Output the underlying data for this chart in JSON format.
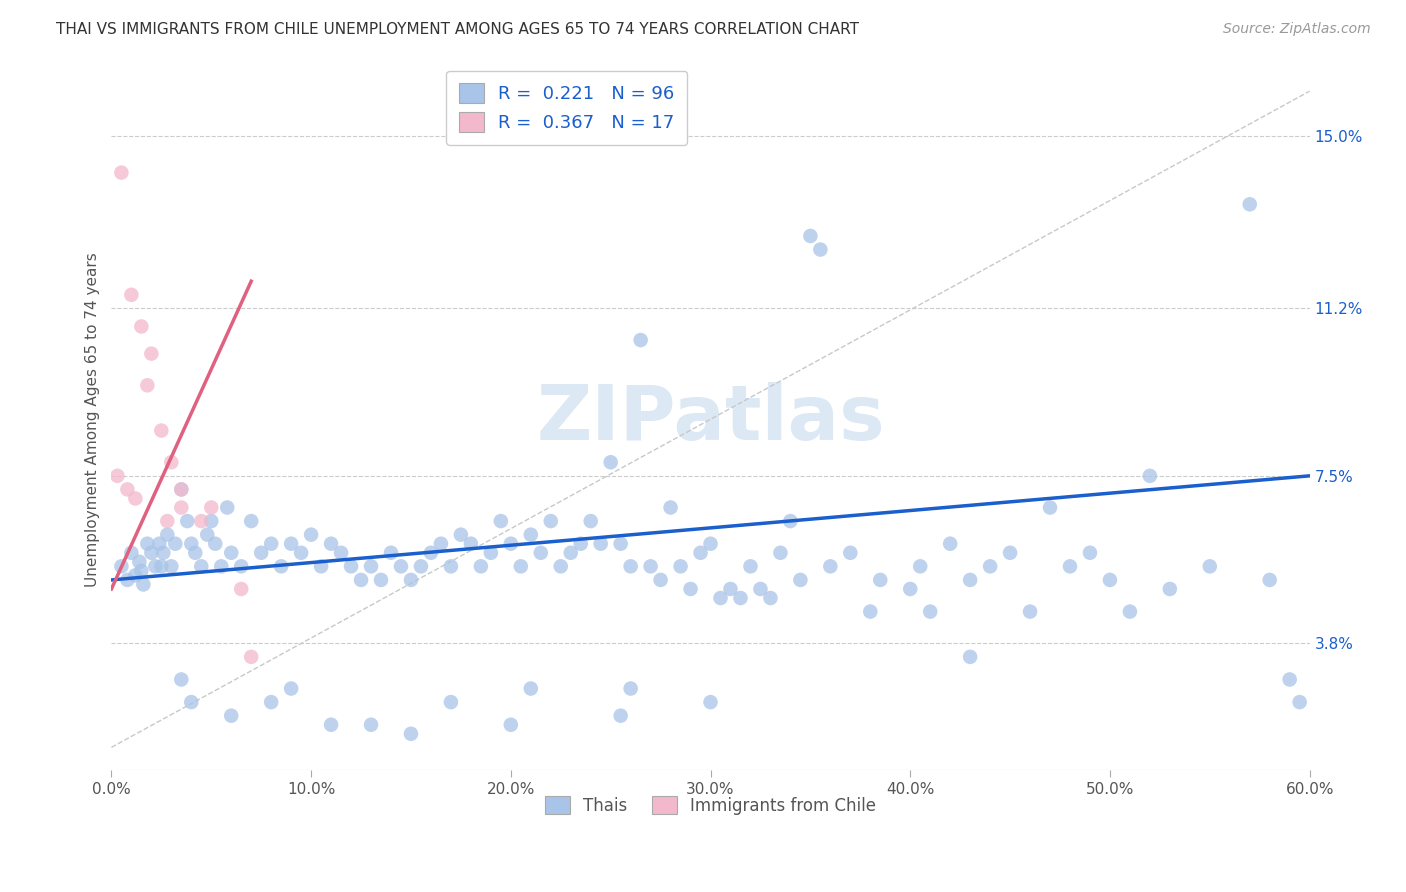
{
  "title": "THAI VS IMMIGRANTS FROM CHILE UNEMPLOYMENT AMONG AGES 65 TO 74 YEARS CORRELATION CHART",
  "source": "Source: ZipAtlas.com",
  "xlabel_vals": [
    0.0,
    10.0,
    20.0,
    30.0,
    40.0,
    50.0,
    60.0
  ],
  "ylabel": "Unemployment Among Ages 65 to 74 years",
  "ylabel_ticks_labels": [
    "3.8%",
    "7.5%",
    "11.2%",
    "15.0%"
  ],
  "ylabel_ticks_vals": [
    3.8,
    7.5,
    11.2,
    15.0
  ],
  "xlim": [
    0,
    60
  ],
  "ylim": [
    1.0,
    16.5
  ],
  "watermark": "ZIPatlas",
  "thai_scatter_color": "#a8c4e8",
  "chile_scatter_color": "#f4b8cc",
  "thai_line_color": "#1a5fcc",
  "chile_line_color": "#e06080",
  "thai_points": [
    [
      0.5,
      5.5
    ],
    [
      0.8,
      5.2
    ],
    [
      1.0,
      5.8
    ],
    [
      1.2,
      5.3
    ],
    [
      1.4,
      5.6
    ],
    [
      1.5,
      5.4
    ],
    [
      1.6,
      5.1
    ],
    [
      1.8,
      6.0
    ],
    [
      2.0,
      5.8
    ],
    [
      2.2,
      5.5
    ],
    [
      2.4,
      6.0
    ],
    [
      2.5,
      5.5
    ],
    [
      2.6,
      5.8
    ],
    [
      2.8,
      6.2
    ],
    [
      3.0,
      5.5
    ],
    [
      3.2,
      6.0
    ],
    [
      3.5,
      7.2
    ],
    [
      3.8,
      6.5
    ],
    [
      4.0,
      6.0
    ],
    [
      4.2,
      5.8
    ],
    [
      4.5,
      5.5
    ],
    [
      4.8,
      6.2
    ],
    [
      5.0,
      6.5
    ],
    [
      5.2,
      6.0
    ],
    [
      5.5,
      5.5
    ],
    [
      5.8,
      6.8
    ],
    [
      6.0,
      5.8
    ],
    [
      6.5,
      5.5
    ],
    [
      7.0,
      6.5
    ],
    [
      7.5,
      5.8
    ],
    [
      8.0,
      6.0
    ],
    [
      8.5,
      5.5
    ],
    [
      9.0,
      6.0
    ],
    [
      9.5,
      5.8
    ],
    [
      10.0,
      6.2
    ],
    [
      10.5,
      5.5
    ],
    [
      11.0,
      6.0
    ],
    [
      11.5,
      5.8
    ],
    [
      12.0,
      5.5
    ],
    [
      12.5,
      5.2
    ],
    [
      13.0,
      5.5
    ],
    [
      13.5,
      5.2
    ],
    [
      14.0,
      5.8
    ],
    [
      14.5,
      5.5
    ],
    [
      15.0,
      5.2
    ],
    [
      15.5,
      5.5
    ],
    [
      16.0,
      5.8
    ],
    [
      16.5,
      6.0
    ],
    [
      17.0,
      5.5
    ],
    [
      17.5,
      6.2
    ],
    [
      18.0,
      6.0
    ],
    [
      18.5,
      5.5
    ],
    [
      19.0,
      5.8
    ],
    [
      19.5,
      6.5
    ],
    [
      20.0,
      6.0
    ],
    [
      20.5,
      5.5
    ],
    [
      21.0,
      6.2
    ],
    [
      21.5,
      5.8
    ],
    [
      22.0,
      6.5
    ],
    [
      22.5,
      5.5
    ],
    [
      23.0,
      5.8
    ],
    [
      23.5,
      6.0
    ],
    [
      24.0,
      6.5
    ],
    [
      24.5,
      6.0
    ],
    [
      25.0,
      7.8
    ],
    [
      25.5,
      6.0
    ],
    [
      26.0,
      5.5
    ],
    [
      26.5,
      10.5
    ],
    [
      27.0,
      5.5
    ],
    [
      27.5,
      5.2
    ],
    [
      28.0,
      6.8
    ],
    [
      28.5,
      5.5
    ],
    [
      29.0,
      5.0
    ],
    [
      29.5,
      5.8
    ],
    [
      30.0,
      6.0
    ],
    [
      30.5,
      4.8
    ],
    [
      31.0,
      5.0
    ],
    [
      31.5,
      4.8
    ],
    [
      32.0,
      5.5
    ],
    [
      32.5,
      5.0
    ],
    [
      33.0,
      4.8
    ],
    [
      33.5,
      5.8
    ],
    [
      34.0,
      6.5
    ],
    [
      34.5,
      5.2
    ],
    [
      35.0,
      12.8
    ],
    [
      35.5,
      12.5
    ],
    [
      36.0,
      5.5
    ],
    [
      37.0,
      5.8
    ],
    [
      38.0,
      4.5
    ],
    [
      38.5,
      5.2
    ],
    [
      40.0,
      5.0
    ],
    [
      40.5,
      5.5
    ],
    [
      41.0,
      4.5
    ],
    [
      42.0,
      6.0
    ],
    [
      43.0,
      5.2
    ],
    [
      44.0,
      5.5
    ],
    [
      45.0,
      5.8
    ],
    [
      47.0,
      6.8
    ],
    [
      48.0,
      5.5
    ],
    [
      49.0,
      5.8
    ],
    [
      50.0,
      5.2
    ],
    [
      51.0,
      4.5
    ],
    [
      52.0,
      7.5
    ],
    [
      53.0,
      5.0
    ],
    [
      55.0,
      5.5
    ],
    [
      57.0,
      13.5
    ],
    [
      58.0,
      5.2
    ],
    [
      59.0,
      3.0
    ],
    [
      59.5,
      2.5
    ],
    [
      17.0,
      2.5
    ],
    [
      21.0,
      2.8
    ],
    [
      26.0,
      2.8
    ],
    [
      30.0,
      2.5
    ],
    [
      43.0,
      3.5
    ],
    [
      46.0,
      4.5
    ],
    [
      20.0,
      2.0
    ],
    [
      25.5,
      2.2
    ],
    [
      13.0,
      2.0
    ],
    [
      15.0,
      1.8
    ],
    [
      11.0,
      2.0
    ],
    [
      8.0,
      2.5
    ],
    [
      6.0,
      2.2
    ],
    [
      9.0,
      2.8
    ],
    [
      4.0,
      2.5
    ],
    [
      3.5,
      3.0
    ]
  ],
  "chile_points": [
    [
      0.5,
      14.2
    ],
    [
      1.0,
      11.5
    ],
    [
      1.5,
      10.8
    ],
    [
      2.0,
      10.2
    ],
    [
      1.8,
      9.5
    ],
    [
      2.5,
      8.5
    ],
    [
      3.0,
      7.8
    ],
    [
      3.5,
      7.2
    ],
    [
      3.5,
      6.8
    ],
    [
      4.5,
      6.5
    ],
    [
      5.0,
      6.8
    ],
    [
      0.3,
      7.5
    ],
    [
      0.8,
      7.2
    ],
    [
      1.2,
      7.0
    ],
    [
      2.8,
      6.5
    ],
    [
      7.0,
      3.5
    ],
    [
      6.5,
      5.0
    ]
  ],
  "thai_trendline": [
    [
      0,
      5.2
    ],
    [
      60,
      7.5
    ]
  ],
  "chile_trendline": [
    [
      0,
      5.0
    ],
    [
      7.0,
      11.8
    ]
  ],
  "diag_line": [
    [
      0,
      1.5
    ],
    [
      60,
      16.0
    ]
  ]
}
